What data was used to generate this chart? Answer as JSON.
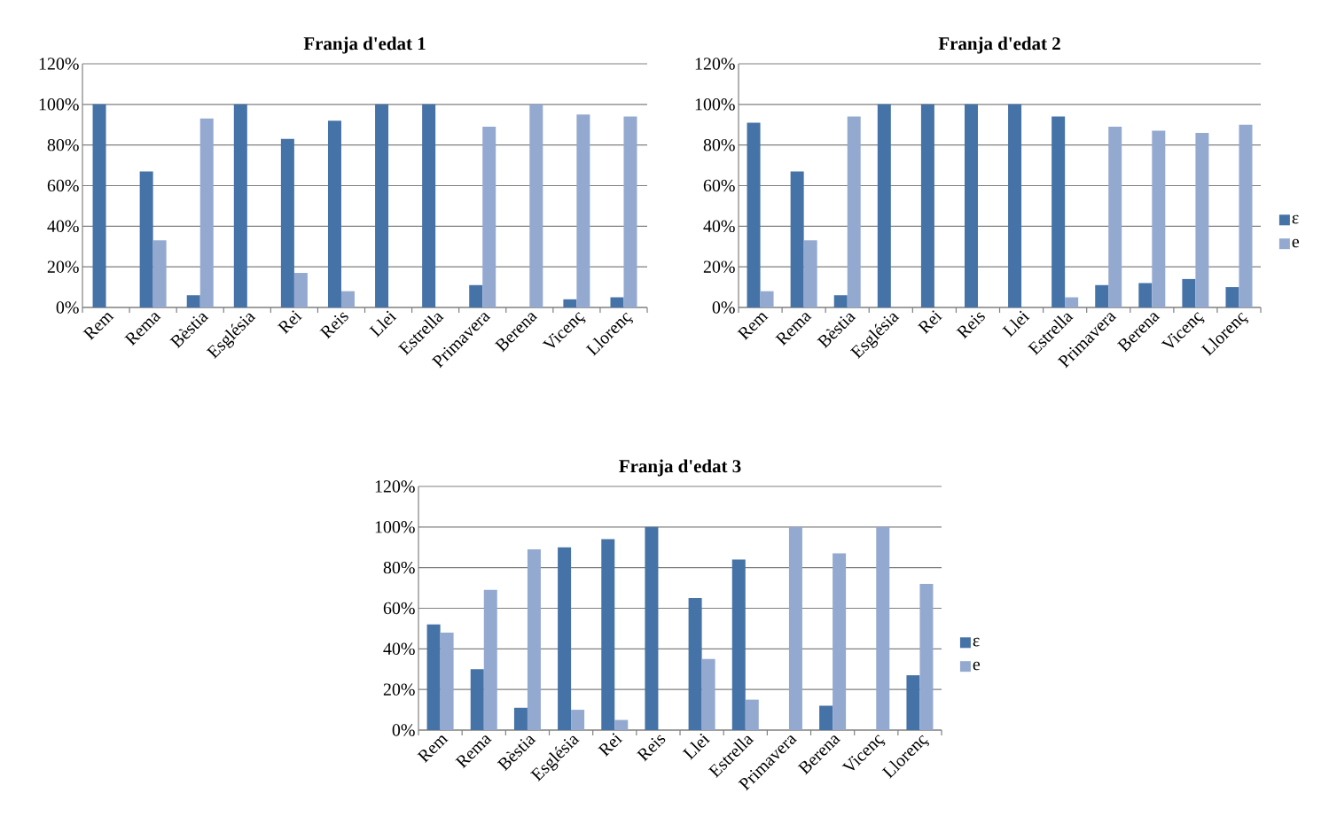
{
  "chart_data": [
    {
      "type": "bar",
      "title": "Franja d'edat 1",
      "categories": [
        "Rem",
        "Rema",
        "Bèstia",
        "Església",
        "Rei",
        "Reis",
        "Llei",
        "Estrella",
        "Primavera",
        "Berena",
        "Vicenç",
        "Llorenç"
      ],
      "series": [
        {
          "color": "#4572a7",
          "values": [
            100,
            67,
            6,
            100,
            83,
            92,
            100,
            100,
            11,
            0,
            4,
            5
          ]
        },
        {
          "color": "#94a9d0",
          "values": [
            0,
            33,
            93,
            0,
            17,
            8,
            0,
            0,
            89,
            100,
            95,
            94
          ]
        }
      ],
      "ylim": [
        0,
        120
      ],
      "yticks": [
        {
          "value": 0,
          "label": "0%"
        },
        {
          "value": 20,
          "label": "20%"
        },
        {
          "value": 40,
          "label": "40%"
        },
        {
          "value": 60,
          "label": "60%"
        },
        {
          "value": 80,
          "label": "80%"
        },
        {
          "value": 100,
          "label": "100%"
        },
        {
          "value": 120,
          "label": "120%"
        }
      ],
      "grid": "y",
      "legend": false
    },
    {
      "type": "bar",
      "title": "Franja d'edat 2",
      "categories": [
        "Rem",
        "Rema",
        "Bèstia",
        "Església",
        "Rei",
        "Reis",
        "Llei",
        "Estrella",
        "Primavera",
        "Berena",
        "Vicenç",
        "Llorenç"
      ],
      "series": [
        {
          "name": "ε",
          "color": "#4572a7",
          "values": [
            91,
            67,
            6,
            100,
            100,
            100,
            100,
            94,
            11,
            12,
            14,
            10
          ]
        },
        {
          "name": "e",
          "color": "#94a9d0",
          "values": [
            8,
            33,
            94,
            0,
            0,
            0,
            0,
            5,
            89,
            87,
            86,
            90
          ]
        }
      ],
      "ylim": [
        0,
        120
      ],
      "yticks": [
        {
          "value": 0,
          "label": "0%"
        },
        {
          "value": 20,
          "label": "20%"
        },
        {
          "value": 40,
          "label": "40%"
        },
        {
          "value": 60,
          "label": "60%"
        },
        {
          "value": 80,
          "label": "80%"
        },
        {
          "value": 100,
          "label": "100%"
        },
        {
          "value": 120,
          "label": "120%"
        }
      ],
      "grid": "y",
      "legend": "right"
    },
    {
      "type": "bar",
      "title": "Franja d'edat 3",
      "categories": [
        "Rem",
        "Rema",
        "Bèstia",
        "Església",
        "Rei",
        "Reis",
        "Llei",
        "Estrella",
        "Primavera",
        "Berena",
        "Vicenç",
        "Llorenç"
      ],
      "series": [
        {
          "name": "ε",
          "color": "#4572a7",
          "values": [
            52,
            30,
            11,
            90,
            94,
            100,
            65,
            84,
            0,
            12,
            0,
            27
          ]
        },
        {
          "name": "e",
          "color": "#94a9d0",
          "values": [
            48,
            69,
            89,
            10,
            5,
            0,
            35,
            15,
            100,
            87,
            100,
            72
          ]
        }
      ],
      "ylim": [
        0,
        120
      ],
      "yticks": [
        {
          "value": 0,
          "label": "0%"
        },
        {
          "value": 20,
          "label": "20%"
        },
        {
          "value": 40,
          "label": "40%"
        },
        {
          "value": 60,
          "label": "60%"
        },
        {
          "value": 80,
          "label": "80%"
        },
        {
          "value": 100,
          "label": "100%"
        },
        {
          "value": 120,
          "label": "120%"
        }
      ],
      "grid": "y",
      "legend": "right"
    }
  ]
}
